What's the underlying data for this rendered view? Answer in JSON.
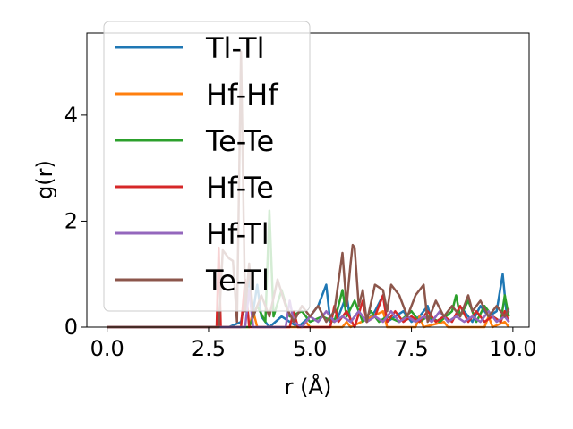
{
  "chart_data": {
    "type": "line",
    "title": "",
    "xlabel": "r (Å)",
    "ylabel": "g(r)",
    "xlim": [
      -0.5,
      10.4
    ],
    "ylim": [
      0,
      5.55
    ],
    "xticks": [
      0.0,
      2.5,
      5.0,
      7.5,
      10.0
    ],
    "xtick_labels": [
      "0.0",
      "2.5",
      "5.0",
      "7.5",
      "10.0"
    ],
    "yticks": [
      0,
      2,
      4
    ],
    "ytick_labels": [
      "0",
      "2",
      "4"
    ],
    "grid": false,
    "legend_position": "top-left",
    "series": [
      {
        "name": "Tl-Tl",
        "color": "#1f77b4",
        "points": [
          [
            0.0,
            0
          ],
          [
            3.0,
            0
          ],
          [
            3.3,
            0.1
          ],
          [
            3.5,
            0.9
          ],
          [
            3.6,
            0.3
          ],
          [
            3.7,
            0.8
          ],
          [
            3.8,
            0.2
          ],
          [
            4.0,
            0
          ],
          [
            4.3,
            0.2
          ],
          [
            4.5,
            0.1
          ],
          [
            4.7,
            0
          ],
          [
            5.0,
            0.2
          ],
          [
            5.2,
            0.4
          ],
          [
            5.4,
            0.8
          ],
          [
            5.5,
            0.1
          ],
          [
            5.7,
            0.2
          ],
          [
            5.9,
            0.6
          ],
          [
            6.0,
            0.1
          ],
          [
            6.2,
            0.3
          ],
          [
            6.4,
            0.1
          ],
          [
            6.6,
            0.3
          ],
          [
            6.8,
            0.6
          ],
          [
            6.9,
            0.1
          ],
          [
            7.1,
            0.2
          ],
          [
            7.3,
            0.3
          ],
          [
            7.5,
            0.1
          ],
          [
            7.7,
            0.2
          ],
          [
            7.9,
            0.4
          ],
          [
            8.0,
            0.1
          ],
          [
            8.2,
            0.3
          ],
          [
            8.4,
            0.1
          ],
          [
            8.6,
            0.2
          ],
          [
            8.8,
            0.3
          ],
          [
            9.0,
            0.1
          ],
          [
            9.2,
            0.4
          ],
          [
            9.4,
            0.2
          ],
          [
            9.6,
            0.3
          ],
          [
            9.75,
            1.0
          ],
          [
            9.85,
            0.2
          ],
          [
            9.9,
            0.3
          ]
        ]
      },
      {
        "name": "Hf-Hf",
        "color": "#ff7f0e",
        "points": [
          [
            0.0,
            0
          ],
          [
            3.5,
            0
          ],
          [
            3.6,
            0.3
          ],
          [
            3.7,
            0
          ],
          [
            4.8,
            0
          ],
          [
            4.9,
            0.1
          ],
          [
            5.0,
            0
          ],
          [
            5.8,
            0
          ],
          [
            5.9,
            0.1
          ],
          [
            6.0,
            0
          ],
          [
            6.8,
            0.3
          ],
          [
            6.9,
            0
          ],
          [
            7.6,
            0
          ],
          [
            7.7,
            0.2
          ],
          [
            7.8,
            0
          ],
          [
            8.3,
            0.1
          ],
          [
            8.4,
            0
          ],
          [
            9.3,
            0
          ],
          [
            9.4,
            0.2
          ],
          [
            9.5,
            0
          ],
          [
            9.8,
            0.1
          ],
          [
            9.9,
            0
          ]
        ]
      },
      {
        "name": "Te-Te",
        "color": "#2ca02c",
        "points": [
          [
            0.0,
            0
          ],
          [
            3.5,
            0
          ],
          [
            3.7,
            0.4
          ],
          [
            3.9,
            0.1
          ],
          [
            4.0,
            2.2
          ],
          [
            4.1,
            0.2
          ],
          [
            4.3,
            0.7
          ],
          [
            4.5,
            0.2
          ],
          [
            4.8,
            0.3
          ],
          [
            5.0,
            0.1
          ],
          [
            5.3,
            0.2
          ],
          [
            5.6,
            0.1
          ],
          [
            5.8,
            0.7
          ],
          [
            5.9,
            0.2
          ],
          [
            6.1,
            0.5
          ],
          [
            6.3,
            0.1
          ],
          [
            6.5,
            0.3
          ],
          [
            6.7,
            0.1
          ],
          [
            6.9,
            0.2
          ],
          [
            7.2,
            0.1
          ],
          [
            7.5,
            0.3
          ],
          [
            7.7,
            0.1
          ],
          [
            7.9,
            0.2
          ],
          [
            8.2,
            0.1
          ],
          [
            8.5,
            0.3
          ],
          [
            8.6,
            0.6
          ],
          [
            8.7,
            0.2
          ],
          [
            8.9,
            0.5
          ],
          [
            9.1,
            0.1
          ],
          [
            9.3,
            0.4
          ],
          [
            9.5,
            0.2
          ],
          [
            9.7,
            0.1
          ],
          [
            9.8,
            0.6
          ],
          [
            9.9,
            0.2
          ]
        ]
      },
      {
        "name": "Hf-Te",
        "color": "#d62728",
        "points": [
          [
            0.0,
            0
          ],
          [
            2.7,
            0
          ],
          [
            2.75,
            1.5
          ],
          [
            2.8,
            0
          ],
          [
            3.3,
            0
          ],
          [
            3.4,
            0.9
          ],
          [
            3.5,
            0
          ],
          [
            4.5,
            0
          ],
          [
            4.6,
            0.3
          ],
          [
            4.7,
            0
          ],
          [
            5.5,
            0
          ],
          [
            5.6,
            0.4
          ],
          [
            5.7,
            0.1
          ],
          [
            5.9,
            0.3
          ],
          [
            6.1,
            0
          ],
          [
            6.3,
            0.5
          ],
          [
            6.4,
            0.1
          ],
          [
            6.6,
            0.2
          ],
          [
            6.8,
            0.6
          ],
          [
            6.9,
            0.1
          ],
          [
            7.1,
            0.3
          ],
          [
            7.3,
            0.1
          ],
          [
            7.5,
            0.2
          ],
          [
            7.7,
            0.1
          ],
          [
            7.9,
            0.3
          ],
          [
            8.1,
            0.1
          ],
          [
            8.3,
            0.2
          ],
          [
            8.5,
            0.1
          ],
          [
            8.7,
            0.4
          ],
          [
            8.9,
            0.1
          ],
          [
            9.1,
            0.3
          ],
          [
            9.3,
            0.1
          ],
          [
            9.5,
            0.2
          ],
          [
            9.7,
            0.1
          ],
          [
            9.8,
            0.3
          ],
          [
            9.9,
            0.1
          ]
        ]
      },
      {
        "name": "Hf-Tl",
        "color": "#9467bd",
        "points": [
          [
            0.0,
            0
          ],
          [
            3.4,
            0
          ],
          [
            3.5,
            0.7
          ],
          [
            3.6,
            0
          ],
          [
            4.4,
            0
          ],
          [
            4.5,
            0.5
          ],
          [
            4.6,
            0.1
          ],
          [
            4.8,
            0
          ],
          [
            5.0,
            0.2
          ],
          [
            5.2,
            0.1
          ],
          [
            5.4,
            0.3
          ],
          [
            5.6,
            0.1
          ],
          [
            5.8,
            0.2
          ],
          [
            6.0,
            0.1
          ],
          [
            6.2,
            0.3
          ],
          [
            6.4,
            0.1
          ],
          [
            6.6,
            0.2
          ],
          [
            6.8,
            0.1
          ],
          [
            7.0,
            0.3
          ],
          [
            7.2,
            0.1
          ],
          [
            7.4,
            0.2
          ],
          [
            7.6,
            0.1
          ],
          [
            7.8,
            0.2
          ],
          [
            8.0,
            0.1
          ],
          [
            8.2,
            0.3
          ],
          [
            8.4,
            0.1
          ],
          [
            8.6,
            0.2
          ],
          [
            8.8,
            0.1
          ],
          [
            9.0,
            0.2
          ],
          [
            9.2,
            0.1
          ],
          [
            9.4,
            0.3
          ],
          [
            9.6,
            0.1
          ],
          [
            9.8,
            0.2
          ],
          [
            9.9,
            0.1
          ]
        ]
      },
      {
        "name": "Te-Tl",
        "color": "#8c564b",
        "points": [
          [
            0.0,
            0
          ],
          [
            2.75,
            0
          ],
          [
            2.85,
            1.45
          ],
          [
            3.0,
            1.3
          ],
          [
            3.1,
            1.25
          ],
          [
            3.2,
            0.1
          ],
          [
            3.3,
            5.2
          ],
          [
            3.4,
            0.3
          ],
          [
            3.5,
            1.2
          ],
          [
            3.6,
            0.2
          ],
          [
            3.8,
            0.6
          ],
          [
            4.0,
            0.2
          ],
          [
            4.2,
            0.9
          ],
          [
            4.4,
            0.4
          ],
          [
            4.6,
            0.1
          ],
          [
            4.8,
            0.4
          ],
          [
            5.0,
            0.2
          ],
          [
            5.2,
            0.4
          ],
          [
            5.4,
            0.1
          ],
          [
            5.6,
            0.3
          ],
          [
            5.8,
            1.4
          ],
          [
            5.9,
            0.4
          ],
          [
            6.0,
            1.2
          ],
          [
            6.05,
            1.55
          ],
          [
            6.1,
            1.5
          ],
          [
            6.2,
            0.4
          ],
          [
            6.3,
            0.7
          ],
          [
            6.4,
            0.1
          ],
          [
            6.6,
            0.8
          ],
          [
            6.8,
            0.7
          ],
          [
            6.9,
            0.3
          ],
          [
            7.0,
            0.8
          ],
          [
            7.2,
            0.6
          ],
          [
            7.4,
            0.2
          ],
          [
            7.6,
            0.6
          ],
          [
            7.8,
            0.8
          ],
          [
            7.9,
            0.1
          ],
          [
            8.1,
            0.5
          ],
          [
            8.3,
            0.2
          ],
          [
            8.5,
            0.4
          ],
          [
            8.7,
            0.2
          ],
          [
            8.9,
            0.6
          ],
          [
            9.0,
            0.3
          ],
          [
            9.2,
            0.5
          ],
          [
            9.4,
            0.2
          ],
          [
            9.6,
            0.4
          ],
          [
            9.8,
            0.2
          ],
          [
            9.9,
            0.35
          ]
        ]
      }
    ]
  }
}
